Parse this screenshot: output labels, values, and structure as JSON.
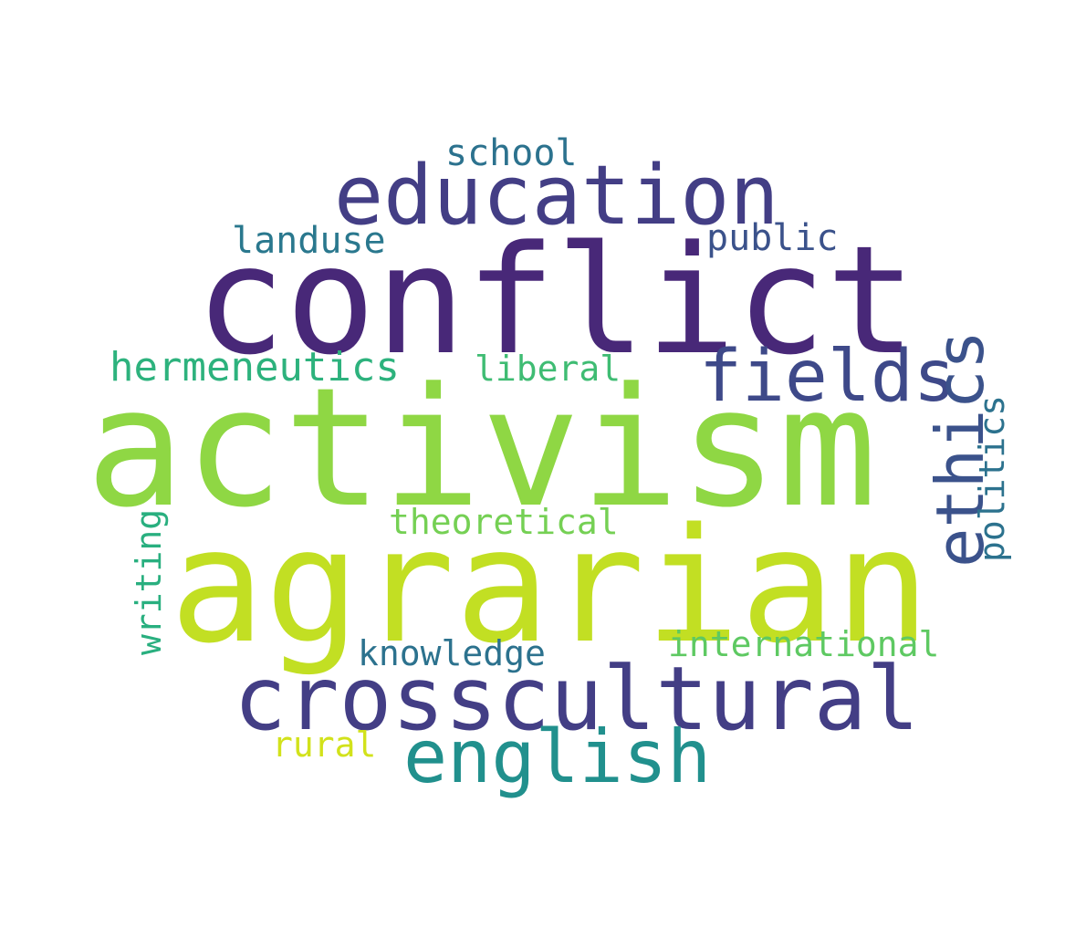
{
  "words": [
    {
      "text": "conflict",
      "color": "#482878"
    },
    {
      "text": "activism",
      "color": "#8fd744"
    },
    {
      "text": "agrarian",
      "color": "#c2df23"
    },
    {
      "text": "education",
      "color": "#433e85"
    },
    {
      "text": "crosscultural",
      "color": "#433e85"
    },
    {
      "text": "english",
      "color": "#21908d"
    },
    {
      "text": "fields",
      "color": "#3e4989"
    },
    {
      "text": "ethics",
      "color": "#3b528b"
    },
    {
      "text": "hermeneutics",
      "color": "#2db27d"
    },
    {
      "text": "school",
      "color": "#2c728e"
    },
    {
      "text": "landuse",
      "color": "#2a788e"
    },
    {
      "text": "public",
      "color": "#3b528b"
    },
    {
      "text": "liberal",
      "color": "#3fbc73"
    },
    {
      "text": "politics",
      "color": "#2c728e"
    },
    {
      "text": "theoretical",
      "color": "#75d054"
    },
    {
      "text": "writing",
      "color": "#29af7f"
    },
    {
      "text": "knowledge",
      "color": "#2c728e"
    },
    {
      "text": "international",
      "color": "#5ec962"
    },
    {
      "text": "rural",
      "color": "#d2e21b"
    }
  ]
}
